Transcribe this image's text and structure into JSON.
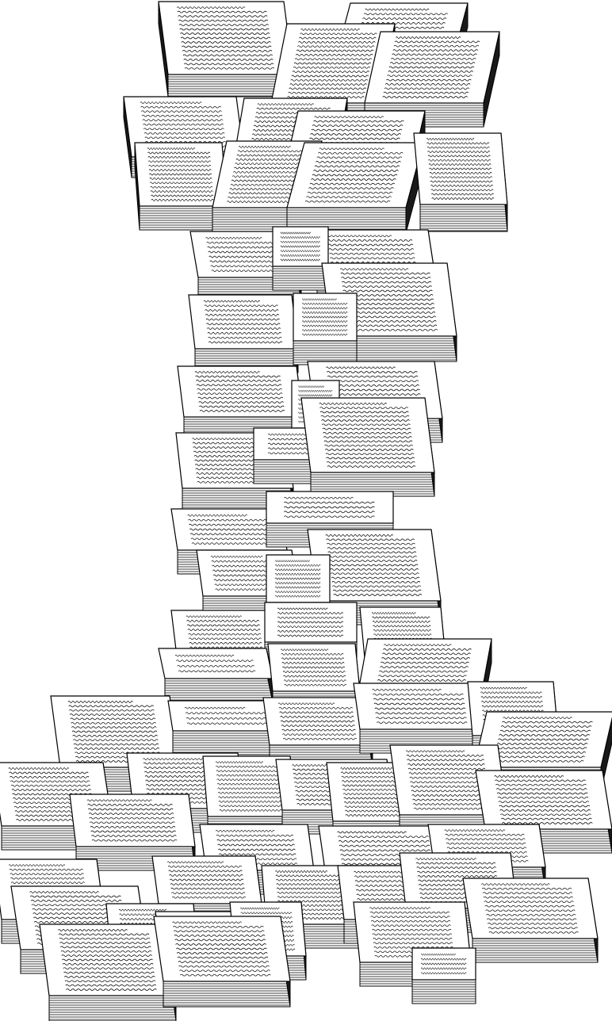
{
  "illustration": {
    "subject": "paper-stacks",
    "ink_color": "#000000",
    "paper_color": "#ffffff",
    "edge_shade_color": "#1a1a1a"
  }
}
